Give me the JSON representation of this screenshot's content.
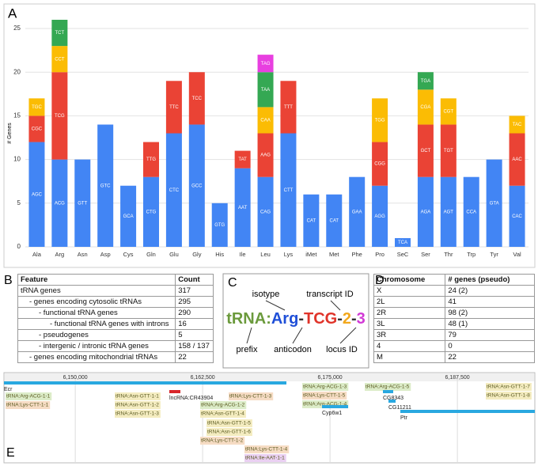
{
  "panel_labels": [
    "A",
    "B",
    "C",
    "D",
    "E"
  ],
  "chart_data": {
    "type": "bar",
    "stacked": true,
    "y_label": "# Genes",
    "categories": [
      "Ala",
      "Arg",
      "Asn",
      "Asp",
      "Cys",
      "Gln",
      "Glu",
      "Gly",
      "His",
      "Ile",
      "Leu",
      "Lys",
      "iMet",
      "Met",
      "Phe",
      "Pro",
      "SeC",
      "Ser",
      "Thr",
      "Trp",
      "Tyr",
      "Val"
    ],
    "series": [
      {
        "color": "#4285f4",
        "values": [
          12,
          10,
          10,
          14,
          7,
          8,
          13,
          14,
          5,
          9,
          8,
          13,
          6,
          6,
          8,
          7,
          1,
          8,
          8,
          8,
          10,
          7
        ],
        "segment_labels": [
          "AGC",
          "ACG",
          "GTT",
          "GTC",
          "GCA",
          "CTG",
          "CTC",
          "GCC",
          "GTG",
          "AAT",
          "CAG",
          "CTT",
          "CAT",
          "CAT",
          "GAA",
          "AGG",
          "TCA",
          "AGA",
          "AGT",
          "CCA",
          "GTA",
          "CAC"
        ]
      },
      {
        "color": "#ea4335",
        "values": [
          3,
          10,
          null,
          null,
          null,
          4,
          6,
          6,
          null,
          2,
          5,
          6,
          null,
          null,
          null,
          5,
          null,
          6,
          6,
          null,
          null,
          6
        ],
        "segment_labels": [
          "CGC",
          "TCG",
          null,
          null,
          null,
          "TTG",
          "TTC",
          "TCC",
          null,
          "TAT",
          "AAG",
          "TTT",
          null,
          null,
          null,
          "CGG",
          null,
          "GCT",
          "TGT",
          null,
          null,
          "AAC"
        ]
      },
      {
        "color": "#fbbc04",
        "values": [
          2,
          3,
          null,
          null,
          null,
          null,
          null,
          null,
          null,
          null,
          3,
          null,
          null,
          null,
          null,
          5,
          null,
          4,
          3,
          null,
          null,
          2
        ],
        "segment_labels": [
          "TGC",
          "CCT",
          null,
          null,
          null,
          null,
          null,
          null,
          null,
          null,
          "CAA",
          null,
          null,
          null,
          null,
          "TGG",
          null,
          "CGA",
          "CGT",
          null,
          null,
          "TAC"
        ]
      },
      {
        "color": "#34a853",
        "values": [
          null,
          3,
          null,
          null,
          null,
          null,
          null,
          null,
          null,
          null,
          4,
          null,
          null,
          null,
          null,
          null,
          null,
          2,
          null,
          null,
          null,
          null
        ],
        "segment_labels": [
          null,
          "TCT",
          null,
          null,
          null,
          null,
          null,
          null,
          null,
          null,
          "TAA",
          null,
          null,
          null,
          null,
          null,
          null,
          "TGA",
          null,
          null,
          null,
          null
        ]
      },
      {
        "color": "#e83fe0",
        "values": [
          null,
          null,
          null,
          null,
          null,
          null,
          null,
          null,
          null,
          null,
          2,
          null,
          null,
          null,
          null,
          null,
          null,
          null,
          null,
          null,
          null,
          null
        ],
        "segment_labels": [
          null,
          null,
          null,
          null,
          null,
          null,
          null,
          null,
          null,
          null,
          "TAG",
          null,
          null,
          null,
          null,
          null,
          null,
          null,
          null,
          null,
          null,
          null
        ]
      }
    ],
    "ylim": [
      0,
      26
    ],
    "yticks": [
      0,
      5,
      10,
      15,
      20,
      25
    ],
    "grid": true
  },
  "feature_table": {
    "columns": [
      "Feature",
      "Count"
    ],
    "rows": [
      [
        "tRNA genes",
        317
      ],
      [
        "- genes encoding cytosolic tRNAs",
        295
      ],
      [
        "- functional tRNA genes",
        290
      ],
      [
        "- functional tRNA genes with introns",
        16
      ],
      [
        "- pseudogenes",
        5
      ],
      [
        "- intergenic / intronic tRNA genes",
        "158 / 137"
      ],
      [
        "- genes encoding mitochondrial tRNAs",
        22
      ]
    ]
  },
  "nomenclature": {
    "parts": [
      {
        "text": "tRNA:",
        "color": "#6b9a3c"
      },
      {
        "text": "Arg",
        "color": "#1f4fd8"
      },
      {
        "text": "-",
        "color": "#333333"
      },
      {
        "text": "TCG",
        "color": "#e0342a"
      },
      {
        "text": "-",
        "color": "#333333"
      },
      {
        "text": "2",
        "color": "#f2a81d"
      },
      {
        "text": "-",
        "color": "#333333"
      },
      {
        "text": "3",
        "color": "#d23ad6"
      }
    ],
    "labels": [
      "isotype",
      "transcript ID",
      "prefix",
      "anticodon",
      "locus ID"
    ]
  },
  "chromosome_table": {
    "columns": [
      "Chromosome",
      "# genes (pseudo)"
    ],
    "rows": [
      [
        "X",
        "24 (2)"
      ],
      [
        "2L",
        41
      ],
      [
        "2R",
        "98 (2)"
      ],
      [
        "3L",
        "48 (1)"
      ],
      [
        "3R",
        79
      ],
      [
        "4",
        0
      ],
      [
        "M",
        22
      ]
    ]
  },
  "browser": {
    "xlim": [
      6143000,
      6195100
    ],
    "xticks": [
      {
        "value": 6150000,
        "label": "6,150,000"
      },
      {
        "value": 6162500,
        "label": "6,162,500"
      },
      {
        "value": 6175000,
        "label": "6,175,000"
      },
      {
        "value": 6187500,
        "label": "6,187,500"
      }
    ],
    "features": [
      {
        "label": "Ecr",
        "color": "#29a8e0"
      },
      {
        "label": "tRNA:Arg-ACG-1-1",
        "color": "#dcecc8"
      },
      {
        "label": "tRNA:Lys-CTT-1-1",
        "color": "#f6dcc4"
      },
      {
        "label": "tRNA:Asn-GTT-1-1",
        "color": "#f4ecc0"
      },
      {
        "label": "tRNA:Asn-GTT-1-2",
        "color": "#f4ecc0"
      },
      {
        "label": "tRNA:Asn-GTT-1-3",
        "color": "#f4ecc0"
      },
      {
        "label": "lncRNA:CR43904",
        "color": "#d8262b"
      },
      {
        "label": "tRNA:Lys-CTT-1-3",
        "color": "#f6dcc4"
      },
      {
        "label": "tRNA:Arg-ACG-1-2",
        "color": "#dcecc8"
      },
      {
        "label": "tRNA:Asn-GTT-1-4",
        "color": "#f4ecc0"
      },
      {
        "label": "tRNA:Asn-GTT-1-5",
        "color": "#f4ecc0"
      },
      {
        "label": "tRNA:Asn-GTT-1-6",
        "color": "#f4ecc0"
      },
      {
        "label": "tRNA:Lys-CTT-1-2",
        "color": "#f6dcc4"
      },
      {
        "label": "tRNA:Lys-CTT-1-4",
        "color": "#f6dcc4"
      },
      {
        "label": "tRNA:Ile-AAT-1-1",
        "color": "#ead0f2"
      },
      {
        "label": "tRNA:Arg-ACG-1-3",
        "color": "#dcecc8"
      },
      {
        "label": "tRNA:Lys-CTT-1-5",
        "color": "#f6dcc4"
      },
      {
        "label": "tRNA:Arg-ACG-1-4",
        "color": "#dcecc8"
      },
      {
        "label": "Cyp6w1",
        "color": "#29a8e0"
      },
      {
        "label": "tRNA:Arg-ACG-1-5",
        "color": "#dcecc8"
      },
      {
        "label": "CG8343",
        "color": "#29a8e0"
      },
      {
        "label": "CG11211",
        "color": "#29a8e0"
      },
      {
        "label": "Ptr",
        "color": "#29a8e0"
      },
      {
        "label": "tRNA:Asn-GTT-1-7",
        "color": "#f4ecc0"
      },
      {
        "label": "tRNA:Asn-GTT-1-8",
        "color": "#f4ecc0"
      }
    ]
  }
}
